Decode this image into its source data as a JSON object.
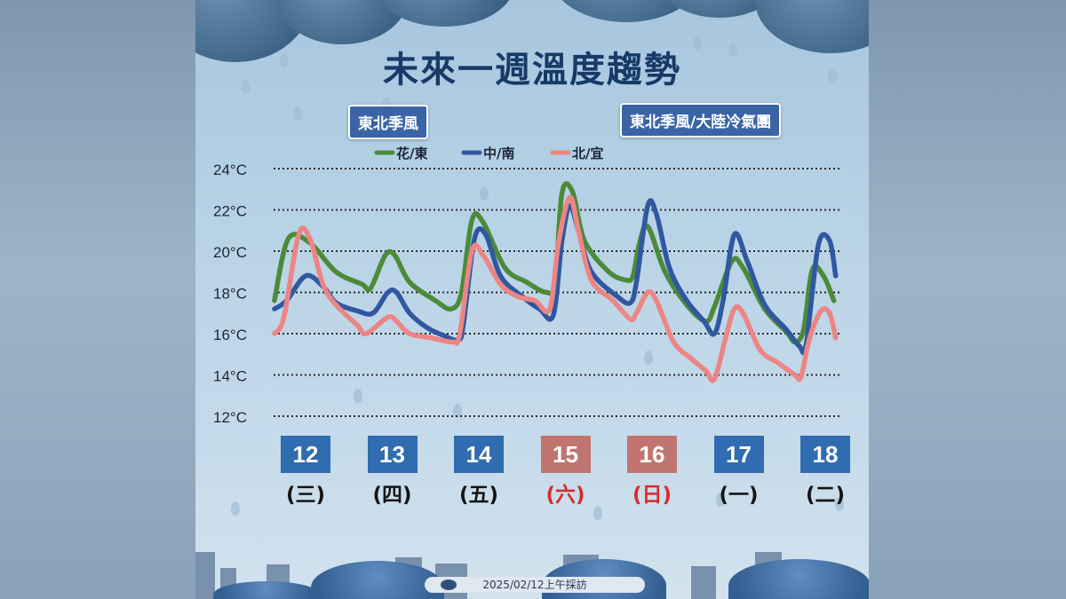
{
  "title": "未來一週溫度趨勢",
  "badges": {
    "left": "東北季風",
    "right": "東北季風/大陸冷氣團"
  },
  "footer": {
    "text": "2025/02/12上午採訪",
    "logo_icon": "cwa-logo-icon"
  },
  "colors": {
    "east": "#4c8a3a",
    "central_south": "#2f58a0",
    "north_yilan": "#ec8584",
    "weekday_box": "#2f6cb0",
    "weekend_box": "#c07571",
    "weekend_text": "#d92b2b"
  },
  "chart_data": {
    "type": "line",
    "title": "未來一週溫度趨勢",
    "ylim": [
      12,
      24
    ],
    "ytick_values": [
      24,
      22,
      20,
      18,
      16,
      14,
      12
    ],
    "yticks": [
      "24°C",
      "22°C",
      "20°C",
      "18°C",
      "16°C",
      "14°C",
      "12°C"
    ],
    "x_days": [
      0,
      1,
      2,
      3,
      4,
      5,
      6
    ],
    "days": [
      {
        "date": "12",
        "weekday": "(三)",
        "weekend": false
      },
      {
        "date": "13",
        "weekday": "(四)",
        "weekend": false
      },
      {
        "date": "14",
        "weekday": "(五)",
        "weekend": false
      },
      {
        "date": "15",
        "weekday": "(六)",
        "weekend": true
      },
      {
        "date": "16",
        "weekday": "(日)",
        "weekend": true
      },
      {
        "date": "17",
        "weekday": "(一)",
        "weekend": false
      },
      {
        "date": "18",
        "weekday": "(二)",
        "weekend": false
      }
    ],
    "series": [
      {
        "name": "花/東",
        "key": "east",
        "points": [
          [
            -0.36,
            17.6
          ],
          [
            -0.2,
            20.6
          ],
          [
            0.05,
            20.4
          ],
          [
            0.35,
            19.0
          ],
          [
            0.65,
            18.4
          ],
          [
            0.75,
            18.2
          ],
          [
            0.92,
            19.8
          ],
          [
            1.03,
            19.8
          ],
          [
            1.2,
            18.5
          ],
          [
            1.5,
            17.6
          ],
          [
            1.68,
            17.2
          ],
          [
            1.8,
            18.0
          ],
          [
            1.92,
            21.5
          ],
          [
            2.05,
            21.4
          ],
          [
            2.3,
            19.2
          ],
          [
            2.55,
            18.5
          ],
          [
            2.78,
            18.0
          ],
          [
            2.88,
            18.5
          ],
          [
            2.96,
            22.8
          ],
          [
            3.08,
            22.9
          ],
          [
            3.22,
            20.5
          ],
          [
            3.5,
            19.0
          ],
          [
            3.7,
            18.6
          ],
          [
            3.78,
            18.8
          ],
          [
            3.85,
            20.3
          ],
          [
            3.95,
            21.2
          ],
          [
            4.15,
            19.0
          ],
          [
            4.4,
            17.4
          ],
          [
            4.62,
            16.6
          ],
          [
            4.72,
            17.3
          ],
          [
            4.92,
            19.5
          ],
          [
            5.05,
            19.2
          ],
          [
            5.3,
            17.2
          ],
          [
            5.55,
            16.1
          ],
          [
            5.65,
            15.6
          ],
          [
            5.75,
            16.2
          ],
          [
            5.85,
            19.1
          ],
          [
            5.98,
            18.8
          ],
          [
            6.1,
            17.6
          ]
        ]
      },
      {
        "name": "中/南",
        "key": "central_south",
        "points": [
          [
            -0.36,
            17.2
          ],
          [
            -0.22,
            17.6
          ],
          [
            0.0,
            18.8
          ],
          [
            0.2,
            18.3
          ],
          [
            0.35,
            17.5
          ],
          [
            0.6,
            17.1
          ],
          [
            0.78,
            17.0
          ],
          [
            0.95,
            18.0
          ],
          [
            1.05,
            18.0
          ],
          [
            1.2,
            17.0
          ],
          [
            1.4,
            16.3
          ],
          [
            1.6,
            15.9
          ],
          [
            1.76,
            15.7
          ],
          [
            1.82,
            16.4
          ],
          [
            1.95,
            20.6
          ],
          [
            2.08,
            20.8
          ],
          [
            2.25,
            18.8
          ],
          [
            2.5,
            17.8
          ],
          [
            2.7,
            17.2
          ],
          [
            2.86,
            16.9
          ],
          [
            2.96,
            20.5
          ],
          [
            3.05,
            22.2
          ],
          [
            3.15,
            21.0
          ],
          [
            3.3,
            19.0
          ],
          [
            3.6,
            17.8
          ],
          [
            3.75,
            17.5
          ],
          [
            3.82,
            18.5
          ],
          [
            3.95,
            22.2
          ],
          [
            4.05,
            21.8
          ],
          [
            4.2,
            19.2
          ],
          [
            4.4,
            17.6
          ],
          [
            4.6,
            16.6
          ],
          [
            4.72,
            16.0
          ],
          [
            4.82,
            17.6
          ],
          [
            4.95,
            20.8
          ],
          [
            5.1,
            19.5
          ],
          [
            5.3,
            17.4
          ],
          [
            5.55,
            16.2
          ],
          [
            5.7,
            15.4
          ],
          [
            5.78,
            15.5
          ],
          [
            5.92,
            20.3
          ],
          [
            6.05,
            20.5
          ],
          [
            6.12,
            18.8
          ]
        ]
      },
      {
        "name": "北/宜",
        "key": "north_yilan",
        "points": [
          [
            -0.36,
            16.0
          ],
          [
            -0.25,
            16.8
          ],
          [
            -0.08,
            20.8
          ],
          [
            0.05,
            20.6
          ],
          [
            0.2,
            18.4
          ],
          [
            0.35,
            17.4
          ],
          [
            0.6,
            16.4
          ],
          [
            0.7,
            16.0
          ],
          [
            0.95,
            16.8
          ],
          [
            1.05,
            16.6
          ],
          [
            1.2,
            16.0
          ],
          [
            1.45,
            15.8
          ],
          [
            1.7,
            15.6
          ],
          [
            1.78,
            16.0
          ],
          [
            1.92,
            20.0
          ],
          [
            2.05,
            19.8
          ],
          [
            2.25,
            18.4
          ],
          [
            2.45,
            17.8
          ],
          [
            2.65,
            17.6
          ],
          [
            2.82,
            17.2
          ],
          [
            2.92,
            20.4
          ],
          [
            3.05,
            22.6
          ],
          [
            3.15,
            21.0
          ],
          [
            3.3,
            18.6
          ],
          [
            3.55,
            17.6
          ],
          [
            3.75,
            16.7
          ],
          [
            3.82,
            17.0
          ],
          [
            3.95,
            18.0
          ],
          [
            4.05,
            17.6
          ],
          [
            4.25,
            15.6
          ],
          [
            4.45,
            14.8
          ],
          [
            4.62,
            14.2
          ],
          [
            4.72,
            13.8
          ],
          [
            4.85,
            15.8
          ],
          [
            4.95,
            17.2
          ],
          [
            5.05,
            17.0
          ],
          [
            5.25,
            15.2
          ],
          [
            5.45,
            14.6
          ],
          [
            5.65,
            14.0
          ],
          [
            5.72,
            13.9
          ],
          [
            5.82,
            15.8
          ],
          [
            5.95,
            17.1
          ],
          [
            6.05,
            17.0
          ],
          [
            6.12,
            15.8
          ]
        ]
      }
    ]
  }
}
